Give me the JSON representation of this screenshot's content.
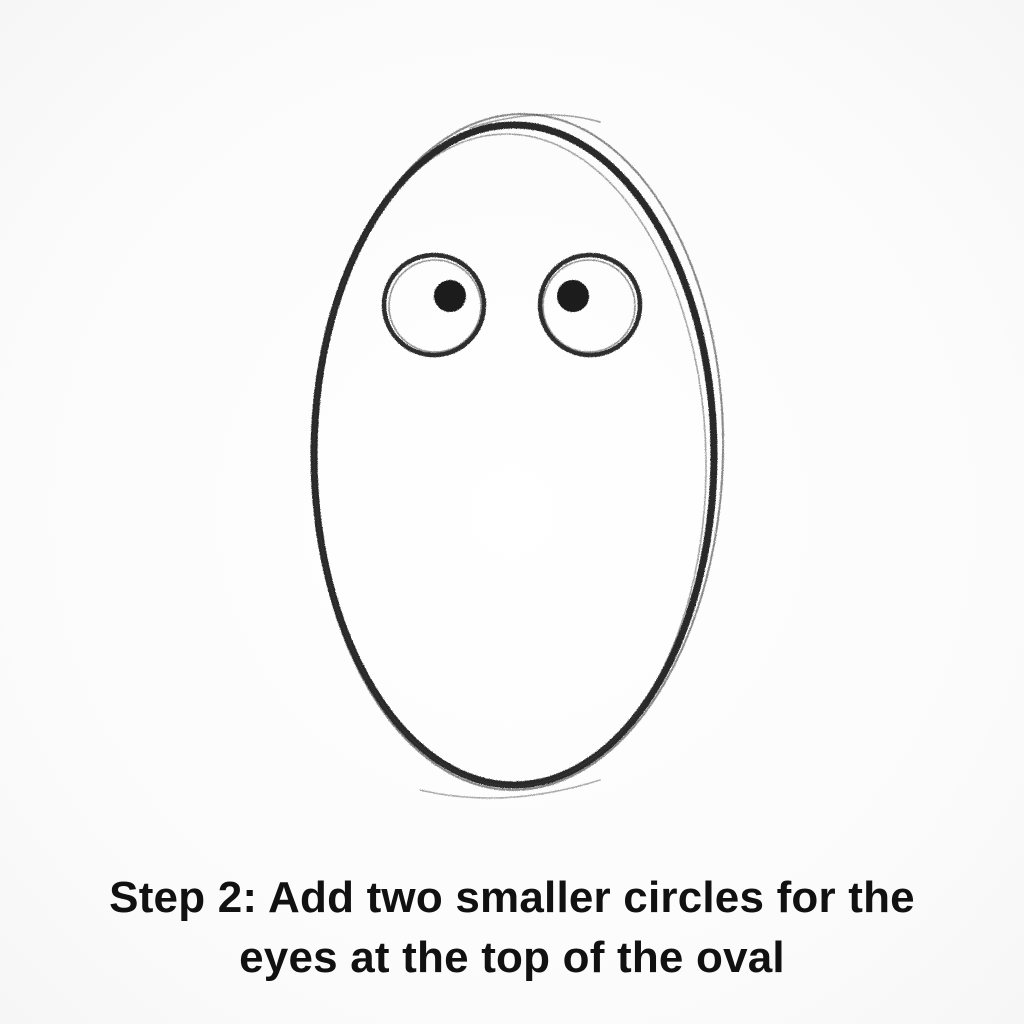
{
  "caption": {
    "line1": "Step 2: Add two smaller circles for the",
    "line2": "eyes at the top of the oval"
  },
  "colors": {
    "ink": "#1a1a1a",
    "background": "#fdfdfd"
  }
}
